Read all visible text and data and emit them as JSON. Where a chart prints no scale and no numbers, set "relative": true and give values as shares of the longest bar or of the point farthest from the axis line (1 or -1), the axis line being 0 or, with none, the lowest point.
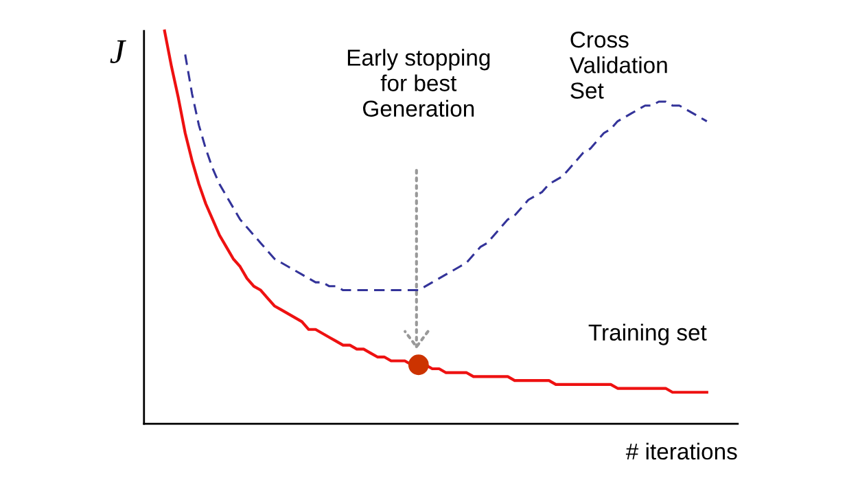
{
  "chart_data": {
    "type": "line",
    "relative": true,
    "xlabel": "# iterations",
    "ylabel": "J",
    "legend": false,
    "annotations": [
      "Early stopping\nfor best\nGeneration"
    ],
    "categories": [
      null,
      null,
      null,
      null,
      null,
      null,
      null,
      null,
      null,
      null,
      null,
      null,
      null,
      null,
      null,
      null,
      null,
      null,
      null,
      null,
      null,
      null,
      null,
      null,
      null,
      null,
      null,
      null,
      null,
      null,
      null,
      null,
      null,
      null,
      null,
      null,
      null,
      null,
      null,
      null,
      null,
      null,
      null,
      null,
      null,
      null,
      null,
      null,
      null,
      null,
      null,
      null,
      null,
      null,
      null,
      null,
      null,
      null,
      null,
      null,
      null,
      null,
      null,
      null,
      null,
      null,
      null,
      null,
      null,
      null,
      null,
      null,
      null,
      null,
      null,
      null,
      null,
      null,
      null,
      null
    ],
    "series": [
      {
        "name": "Cross\nValidation\nSet",
        "color": "#333399",
        "line_style": "dashed",
        "values": [
          null,
          null,
          null,
          0.94,
          0.84,
          0.76,
          0.7,
          0.65,
          0.61,
          0.58,
          0.55,
          0.52,
          0.5,
          0.48,
          0.46,
          0.44,
          0.42,
          0.41,
          0.4,
          0.39,
          0.38,
          0.37,
          0.36,
          0.36,
          0.35,
          0.35,
          0.34,
          0.34,
          0.34,
          0.34,
          0.34,
          0.34,
          0.34,
          0.34,
          0.34,
          0.34,
          0.34,
          0.34,
          0.35,
          0.36,
          0.37,
          0.38,
          0.39,
          0.4,
          0.41,
          0.43,
          0.45,
          0.46,
          0.48,
          0.5,
          0.52,
          0.53,
          0.55,
          0.57,
          0.58,
          0.59,
          0.61,
          0.62,
          0.63,
          0.65,
          0.67,
          0.69,
          0.7,
          0.72,
          0.74,
          0.75,
          0.77,
          0.78,
          0.79,
          0.8,
          0.81,
          0.81,
          0.82,
          0.82,
          0.81,
          0.81,
          0.8,
          0.79,
          0.78,
          0.77
        ]
      },
      {
        "name": "Training set",
        "color": "#ee1111",
        "line_style": "solid",
        "values": [
          1.0,
          0.91,
          0.83,
          0.74,
          0.67,
          0.61,
          0.56,
          0.52,
          0.48,
          0.45,
          0.42,
          0.4,
          0.37,
          0.35,
          0.34,
          0.32,
          0.3,
          0.29,
          0.28,
          0.27,
          0.26,
          0.24,
          0.24,
          0.23,
          0.22,
          0.21,
          0.2,
          0.2,
          0.19,
          0.19,
          0.18,
          0.17,
          0.17,
          0.16,
          0.16,
          0.16,
          0.15,
          0.15,
          0.15,
          0.14,
          0.14,
          0.13,
          0.13,
          0.13,
          0.13,
          0.12,
          0.12,
          0.12,
          0.12,
          0.12,
          0.12,
          0.11,
          0.11,
          0.11,
          0.11,
          0.11,
          0.11,
          0.1,
          0.1,
          0.1,
          0.1,
          0.1,
          0.1,
          0.1,
          0.1,
          0.1,
          0.09,
          0.09,
          0.09,
          0.09,
          0.09,
          0.09,
          0.09,
          0.09,
          0.08,
          0.08,
          0.08,
          0.08,
          0.08,
          0.08
        ]
      }
    ]
  }
}
